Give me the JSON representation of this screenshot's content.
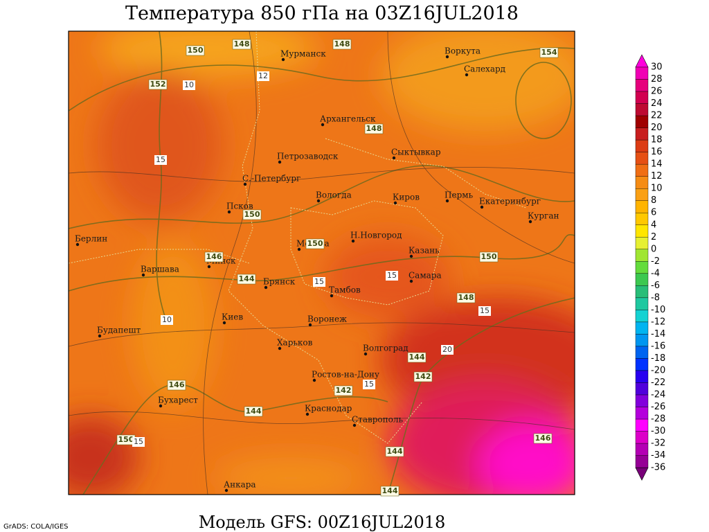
{
  "header": {
    "title": "Температура 850 гПа на 03Z16JUL2018"
  },
  "footer": {
    "model": "Модель GFS: 00Z16JUL2018",
    "credit": "GrADS: COLA/IGES"
  },
  "cities": [
    "Мурманск",
    "Воркута",
    "Салехард",
    "Архангельск",
    "Петрозаводск",
    "Сыктывкар",
    "С.-Петербург",
    "Вологда",
    "Киров",
    "Пермь",
    "Екатеринбург",
    "Курган",
    "Псков",
    "Берлин",
    "Москва",
    "Н.Новгород",
    "Казань",
    "Варшава",
    "Минск",
    "Брянск",
    "Самара",
    "Тамбов",
    "Киев",
    "Воронеж",
    "Будапешт",
    "Харьков",
    "Волгоград",
    "Ростов-на-Дону",
    "Бухарест",
    "Краснодар",
    "Ставрополь",
    "Анкара"
  ],
  "height_labels": [
    150,
    148,
    148,
    154,
    152,
    148,
    150,
    146,
    144,
    150,
    148,
    144,
    142,
    142,
    146,
    144,
    150,
    146,
    144,
    144,
    150
  ],
  "temperature_labels": [
    10,
    12,
    15,
    15,
    15,
    15,
    10,
    20,
    15,
    15
  ],
  "colorbar": {
    "ticks": [
      30,
      28,
      26,
      24,
      22,
      20,
      18,
      16,
      14,
      12,
      10,
      8,
      6,
      4,
      2,
      0,
      -2,
      -4,
      -6,
      -8,
      -10,
      -12,
      -14,
      -16,
      -18,
      -20,
      -22,
      -24,
      -26,
      -28,
      -30,
      -32,
      -34,
      -36
    ],
    "colors": [
      "#ff00dc",
      "#f000b4",
      "#e6007c",
      "#d20050",
      "#be0a32",
      "#a00000",
      "#c81e1e",
      "#dc3c14",
      "#e65014",
      "#f06e14",
      "#f58c14",
      "#faa014",
      "#ffb400",
      "#ffc800",
      "#ffe600",
      "#e6f032",
      "#a0e632",
      "#64dc3c",
      "#3cc850",
      "#28be78",
      "#1ec8a0",
      "#14d2d2",
      "#00b4f0",
      "#0096f0",
      "#0064f0",
      "#0032ff",
      "#2800f0",
      "#5000dc",
      "#8200dc",
      "#b400dc",
      "#ff00ff",
      "#dc00c8",
      "#b400b4",
      "#960096",
      "#780078"
    ]
  }
}
